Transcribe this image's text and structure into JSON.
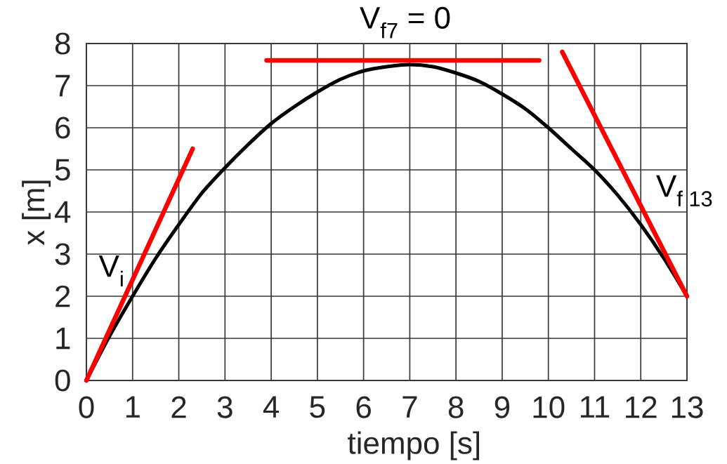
{
  "chart_data": {
    "type": "line",
    "xlabel": "tiempo [s]",
    "ylabel": "x [m]",
    "xlim": [
      0,
      13
    ],
    "ylim": [
      0,
      8
    ],
    "xticks": [
      0,
      1,
      2,
      3,
      4,
      5,
      6,
      7,
      8,
      9,
      10,
      11,
      12,
      13
    ],
    "yticks": [
      0,
      1,
      2,
      3,
      4,
      5,
      6,
      7,
      8
    ],
    "grid": true,
    "series": [
      {
        "color": "#000000",
        "x": [
          0,
          0.5,
          1,
          1.5,
          2,
          2.5,
          3,
          3.5,
          4,
          4.5,
          5,
          5.5,
          6,
          6.5,
          7,
          7.5,
          8,
          8.5,
          9,
          9.5,
          10,
          10.5,
          11,
          11.5,
          12,
          12.5,
          13
        ],
        "values": [
          0,
          1.05,
          2.0,
          2.9,
          3.7,
          4.45,
          5.05,
          5.6,
          6.1,
          6.5,
          6.85,
          7.15,
          7.35,
          7.45,
          7.5,
          7.45,
          7.3,
          7.1,
          6.8,
          6.45,
          6.0,
          5.5,
          5.0,
          4.4,
          3.7,
          2.9,
          2.0
        ]
      },
      {
        "color": "#ff0000",
        "x": [
          0,
          2.3
        ],
        "values": [
          0,
          5.5
        ]
      },
      {
        "color": "#ff0000",
        "x": [
          3.9,
          9.8
        ],
        "values": [
          7.6,
          7.6
        ]
      },
      {
        "color": "#ff0000",
        "x": [
          10.3,
          13
        ],
        "values": [
          7.8,
          2.0
        ]
      }
    ],
    "annotations": [
      "V$_{i}$",
      "V$_{f7}$ = 0",
      "V$_{f 13}$"
    ]
  }
}
